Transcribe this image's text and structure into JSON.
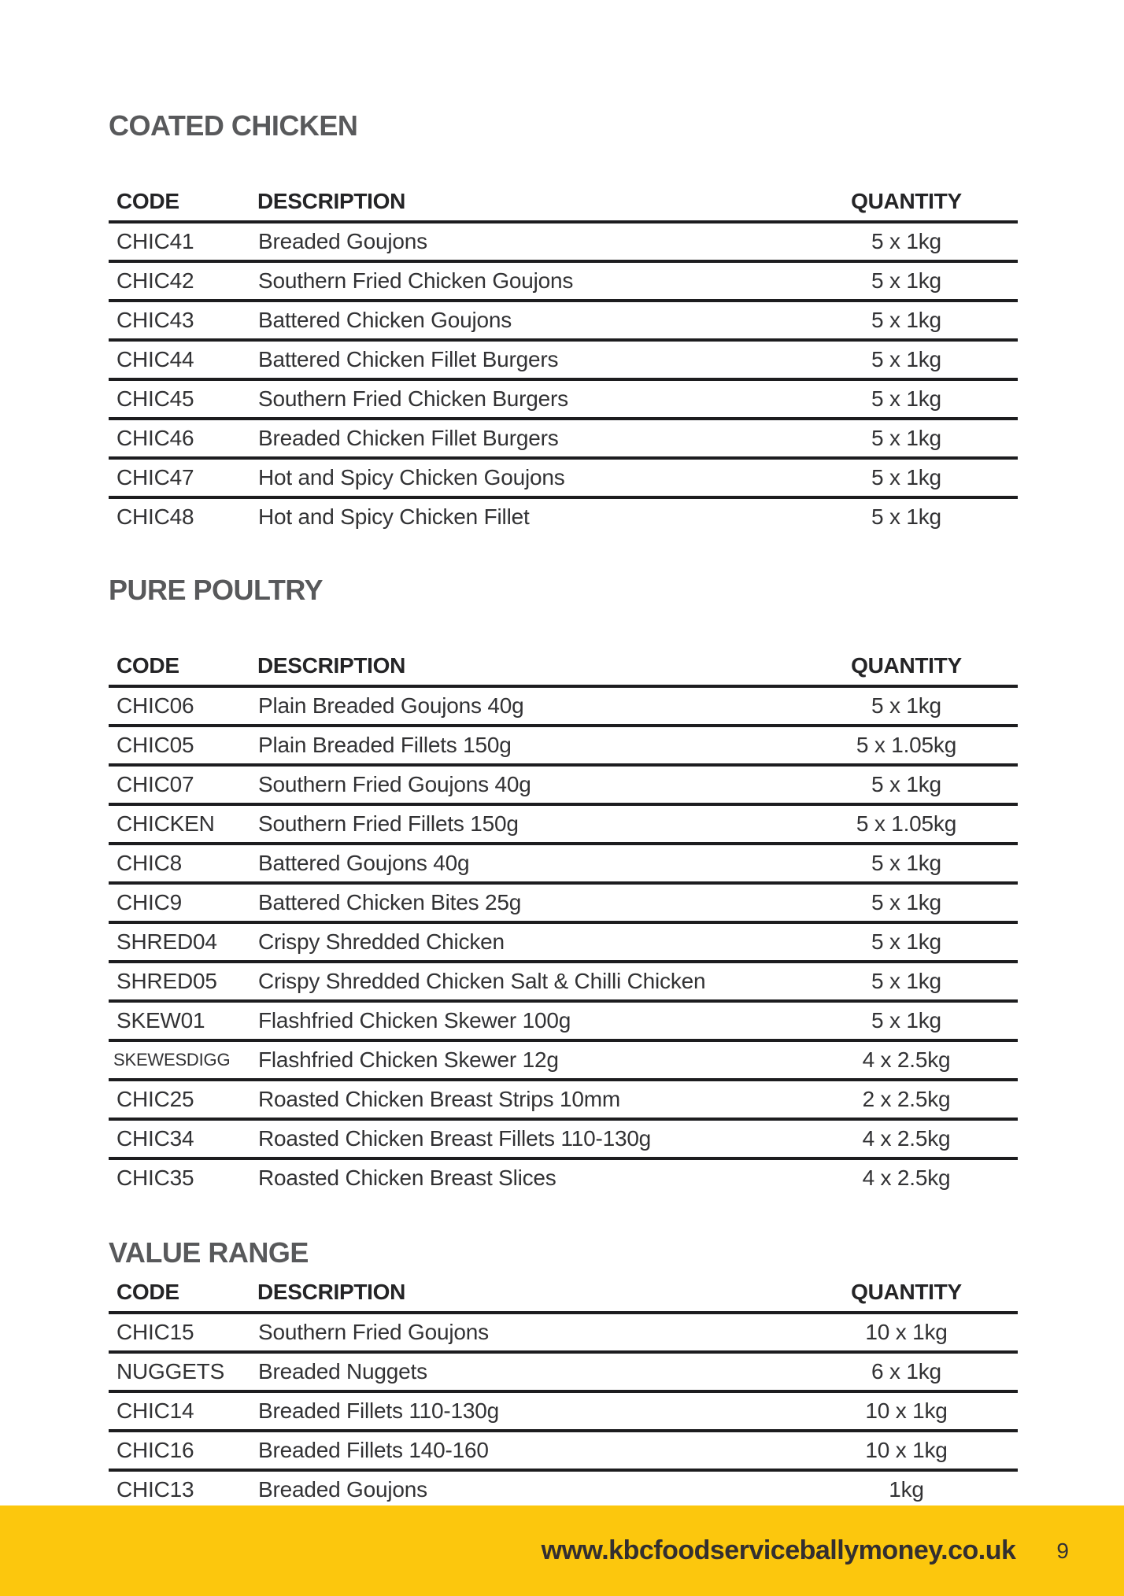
{
  "colors": {
    "accent_yellow": "#FCC70D",
    "heading_gray": "#58595B",
    "rule_dark": "#1D1D1F",
    "text_dark": "#323234"
  },
  "footer": {
    "url": "www.kbcfoodserviceballymoney.co.uk",
    "page_number": "9"
  },
  "sections": [
    {
      "title": "COATED CHICKEN",
      "columns": {
        "code": "CODE",
        "description": "DESCRIPTION",
        "quantity": "QUANTITY"
      },
      "rows": [
        {
          "code": "CHIC41",
          "description": "Breaded Goujons",
          "quantity": "5 x 1kg"
        },
        {
          "code": "CHIC42",
          "description": "Southern Fried Chicken Goujons",
          "quantity": "5 x 1kg"
        },
        {
          "code": "CHIC43",
          "description": "Battered Chicken Goujons",
          "quantity": "5 x 1kg"
        },
        {
          "code": "CHIC44",
          "description": "Battered Chicken Fillet Burgers",
          "quantity": "5 x 1kg"
        },
        {
          "code": "CHIC45",
          "description": "Southern Fried Chicken Burgers",
          "quantity": "5 x 1kg"
        },
        {
          "code": "CHIC46",
          "description": "Breaded Chicken Fillet Burgers",
          "quantity": "5 x 1kg"
        },
        {
          "code": "CHIC47",
          "description": "Hot and Spicy Chicken Goujons",
          "quantity": "5 x 1kg"
        },
        {
          "code": "CHIC48",
          "description": "Hot and Spicy Chicken Fillet",
          "quantity": "5 x 1kg"
        }
      ]
    },
    {
      "title": "PURE POULTRY",
      "columns": {
        "code": "CODE",
        "description": "DESCRIPTION",
        "quantity": "QUANTITY"
      },
      "rows": [
        {
          "code": "CHIC06",
          "description": "Plain Breaded Goujons 40g",
          "quantity": "5 x 1kg"
        },
        {
          "code": "CHIC05",
          "description": "Plain Breaded Fillets 150g",
          "quantity": "5 x 1.05kg"
        },
        {
          "code": "CHIC07",
          "description": "Southern Fried Goujons 40g",
          "quantity": "5 x 1kg"
        },
        {
          "code": "CHICKEN",
          "description": "Southern Fried Fillets 150g",
          "quantity": "5 x 1.05kg"
        },
        {
          "code": "CHIC8",
          "description": "Battered Goujons 40g",
          "quantity": "5 x 1kg"
        },
        {
          "code": "CHIC9",
          "description": "Battered Chicken Bites 25g",
          "quantity": "5 x 1kg"
        },
        {
          "code": "SHRED04",
          "description": "Crispy Shredded Chicken",
          "quantity": "5 x 1kg"
        },
        {
          "code": "SHRED05",
          "description": "Crispy Shredded Chicken Salt & Chilli Chicken",
          "quantity": "5 x 1kg"
        },
        {
          "code": "SKEW01",
          "description": "Flashfried Chicken Skewer 100g",
          "quantity": "5 x 1kg"
        },
        {
          "code": "SKEWESDIGG",
          "description": "Flashfried Chicken Skewer 12g",
          "quantity": "4 x 2.5kg"
        },
        {
          "code": "CHIC25",
          "description": "Roasted Chicken Breast Strips 10mm",
          "quantity": "2 x 2.5kg"
        },
        {
          "code": "CHIC34",
          "description": "Roasted Chicken Breast Fillets 110-130g",
          "quantity": "4 x 2.5kg"
        },
        {
          "code": "CHIC35",
          "description": "Roasted Chicken Breast Slices",
          "quantity": "4 x 2.5kg"
        }
      ]
    },
    {
      "title": "VALUE RANGE",
      "columns": {
        "code": "CODE",
        "description": "DESCRIPTION",
        "quantity": "QUANTITY"
      },
      "rows": [
        {
          "code": "CHIC15",
          "description": "Southern Fried Goujons",
          "quantity": "10 x 1kg"
        },
        {
          "code": "NUGGETS",
          "description": "Breaded Nuggets",
          "quantity": "6 x 1kg"
        },
        {
          "code": "CHIC14",
          "description": "Breaded Fillets 110-130g",
          "quantity": "10 x 1kg"
        },
        {
          "code": "CHIC16",
          "description": "Breaded Fillets 140-160",
          "quantity": "10 x 1kg"
        },
        {
          "code": "CHIC13",
          "description": "Breaded Goujons",
          "quantity": "1kg"
        }
      ]
    }
  ]
}
